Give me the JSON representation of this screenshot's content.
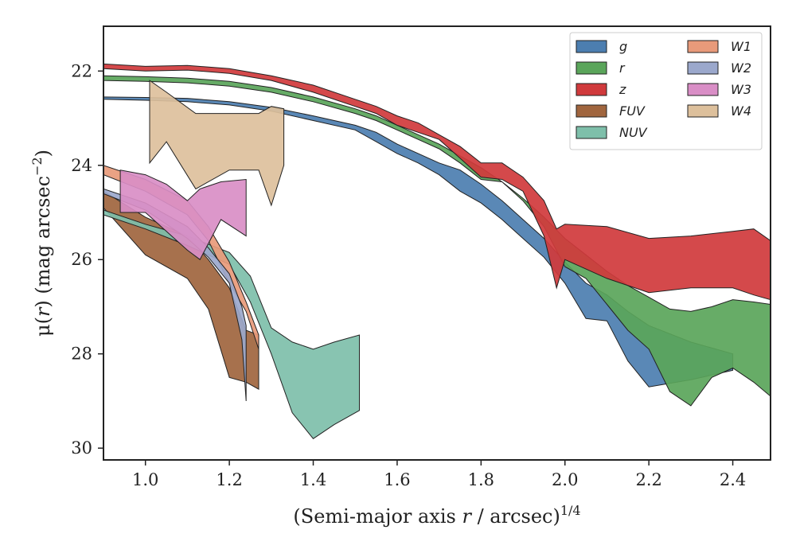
{
  "chart_data": {
    "type": "area",
    "title": "",
    "xlabel": {
      "pre": "(Semi-major axis ",
      "var": "r",
      "post": " / arcsec)",
      "sup": "1/4"
    },
    "ylabel": {
      "pre": "μ(",
      "var": "r",
      "post": ") (mag arcsec",
      "sup": "−2",
      "close": ")"
    },
    "xlim": [
      0.9,
      2.49
    ],
    "ylim": [
      30.25,
      21.05
    ],
    "y_inverted": true,
    "xticks": [
      1.0,
      1.2,
      1.4,
      1.6,
      1.8,
      2.0,
      2.2,
      2.4
    ],
    "xtick_labels": [
      "1.0",
      "1.2",
      "1.4",
      "1.6",
      "1.8",
      "2.0",
      "2.2",
      "2.4"
    ],
    "yticks": [
      22,
      24,
      26,
      28,
      30
    ],
    "ytick_labels": [
      "22",
      "24",
      "26",
      "28",
      "30"
    ],
    "grid": false,
    "legend": {
      "placement": "top-right",
      "columns": 2
    },
    "series": [
      {
        "name": "g",
        "color": "#4c7eb0",
        "x": [
          0.9,
          1.0,
          1.1,
          1.2,
          1.3,
          1.4,
          1.5,
          1.55,
          1.6,
          1.65,
          1.7,
          1.75,
          1.8,
          1.85,
          1.9,
          1.95,
          2.0,
          2.05,
          2.1,
          2.15,
          2.2,
          2.3,
          2.4
        ],
        "y_upper": [
          22.55,
          22.56,
          22.58,
          22.65,
          22.77,
          22.95,
          23.15,
          23.3,
          23.55,
          23.75,
          23.95,
          24.1,
          24.4,
          24.75,
          25.15,
          25.55,
          26.05,
          26.5,
          26.75,
          27.1,
          27.4,
          27.75,
          28.0
        ],
        "y_lower": [
          22.6,
          22.62,
          22.65,
          22.72,
          22.85,
          23.05,
          23.25,
          23.5,
          23.75,
          23.95,
          24.2,
          24.55,
          24.8,
          25.15,
          25.55,
          25.95,
          26.5,
          27.25,
          27.3,
          28.15,
          28.7,
          28.55,
          28.35
        ]
      },
      {
        "name": "r",
        "color": "#5aa55a",
        "x": [
          0.9,
          1.0,
          1.1,
          1.2,
          1.3,
          1.4,
          1.5,
          1.55,
          1.6,
          1.65,
          1.7,
          1.75,
          1.8,
          1.85,
          1.9,
          1.95,
          2.0,
          2.05,
          2.1,
          2.15,
          2.2,
          2.25,
          2.3,
          2.35,
          2.4,
          2.45,
          2.49
        ],
        "y_upper": [
          22.1,
          22.12,
          22.15,
          22.22,
          22.35,
          22.55,
          22.8,
          22.95,
          23.15,
          23.35,
          23.55,
          23.8,
          24.05,
          24.35,
          24.7,
          25.1,
          25.55,
          25.9,
          26.25,
          26.55,
          26.8,
          27.05,
          27.1,
          27.0,
          26.85,
          26.9,
          26.95
        ],
        "y_lower": [
          22.2,
          22.22,
          22.25,
          22.32,
          22.45,
          22.65,
          22.9,
          23.05,
          23.25,
          23.45,
          23.65,
          23.95,
          24.3,
          24.35,
          24.75,
          25.3,
          26.15,
          26.4,
          26.95,
          27.5,
          27.9,
          28.8,
          29.1,
          28.5,
          28.3,
          28.6,
          28.9
        ]
      },
      {
        "name": "z",
        "color": "#d03a3c",
        "x": [
          0.9,
          1.0,
          1.1,
          1.2,
          1.3,
          1.4,
          1.5,
          1.55,
          1.6,
          1.65,
          1.7,
          1.75,
          1.8,
          1.85,
          1.9,
          1.95,
          1.98,
          2.0,
          2.1,
          2.2,
          2.3,
          2.4,
          2.45,
          2.49
        ],
        "y_upper": [
          21.85,
          21.9,
          21.88,
          21.95,
          22.1,
          22.3,
          22.6,
          22.75,
          22.95,
          23.1,
          23.35,
          23.6,
          23.95,
          23.95,
          24.25,
          24.75,
          25.35,
          25.25,
          25.3,
          25.55,
          25.5,
          25.4,
          25.35,
          25.6
        ],
        "y_lower": [
          21.95,
          22.0,
          21.98,
          22.05,
          22.2,
          22.45,
          22.75,
          22.9,
          23.15,
          23.3,
          23.45,
          23.85,
          24.25,
          24.3,
          24.55,
          25.5,
          26.6,
          26.0,
          26.4,
          26.7,
          26.6,
          26.6,
          26.75,
          26.85
        ]
      },
      {
        "name": "FUV",
        "color": "#a0653e",
        "x": [
          0.9,
          1.0,
          1.1,
          1.15,
          1.2,
          1.24,
          1.27
        ],
        "y_upper": [
          24.55,
          25.1,
          25.5,
          26.0,
          26.6,
          27.5,
          27.6
        ],
        "y_lower": [
          24.9,
          25.9,
          26.4,
          27.05,
          28.5,
          28.6,
          28.75
        ]
      },
      {
        "name": "NUV",
        "color": "#7ebfaa",
        "x": [
          0.9,
          1.0,
          1.1,
          1.2,
          1.25,
          1.3,
          1.35,
          1.4,
          1.45,
          1.51
        ],
        "y_upper": [
          24.95,
          25.25,
          25.5,
          25.85,
          26.35,
          27.45,
          27.75,
          27.9,
          27.75,
          27.6
        ],
        "y_lower": [
          25.05,
          25.35,
          25.7,
          26.1,
          26.9,
          28.0,
          29.25,
          29.8,
          29.5,
          29.2
        ]
      },
      {
        "name": "W1",
        "color": "#e89a7a",
        "x": [
          0.9,
          1.0,
          1.1,
          1.15,
          1.2,
          1.24,
          1.27
        ],
        "y_upper": [
          24.0,
          24.3,
          24.75,
          25.3,
          26.05,
          26.9,
          27.6
        ],
        "y_lower": [
          24.2,
          24.55,
          25.05,
          25.6,
          26.5,
          27.1,
          27.9
        ]
      },
      {
        "name": "W2",
        "color": "#9ba8cc",
        "x": [
          0.9,
          1.0,
          1.1,
          1.15,
          1.2,
          1.23,
          1.24
        ],
        "y_upper": [
          24.5,
          24.8,
          25.3,
          25.75,
          26.3,
          27.0,
          27.4
        ],
        "y_lower": [
          24.6,
          24.95,
          25.55,
          25.95,
          26.5,
          27.7,
          29.0
        ]
      },
      {
        "name": "W3",
        "color": "#d98ec6",
        "x": [
          0.94,
          1.0,
          1.05,
          1.1,
          1.13,
          1.18,
          1.24
        ],
        "y_upper": [
          24.1,
          24.2,
          24.4,
          24.75,
          24.5,
          24.35,
          24.3
        ],
        "y_lower": [
          25.0,
          25.0,
          25.4,
          25.8,
          26.0,
          25.15,
          25.5
        ]
      },
      {
        "name": "W4",
        "color": "#ddc09c",
        "x": [
          1.01,
          1.05,
          1.12,
          1.2,
          1.27,
          1.3,
          1.33
        ],
        "y_upper": [
          22.2,
          22.45,
          22.9,
          22.9,
          22.9,
          22.75,
          22.8
        ],
        "y_lower": [
          23.95,
          23.5,
          24.5,
          24.1,
          24.1,
          24.85,
          24.0
        ]
      }
    ]
  }
}
